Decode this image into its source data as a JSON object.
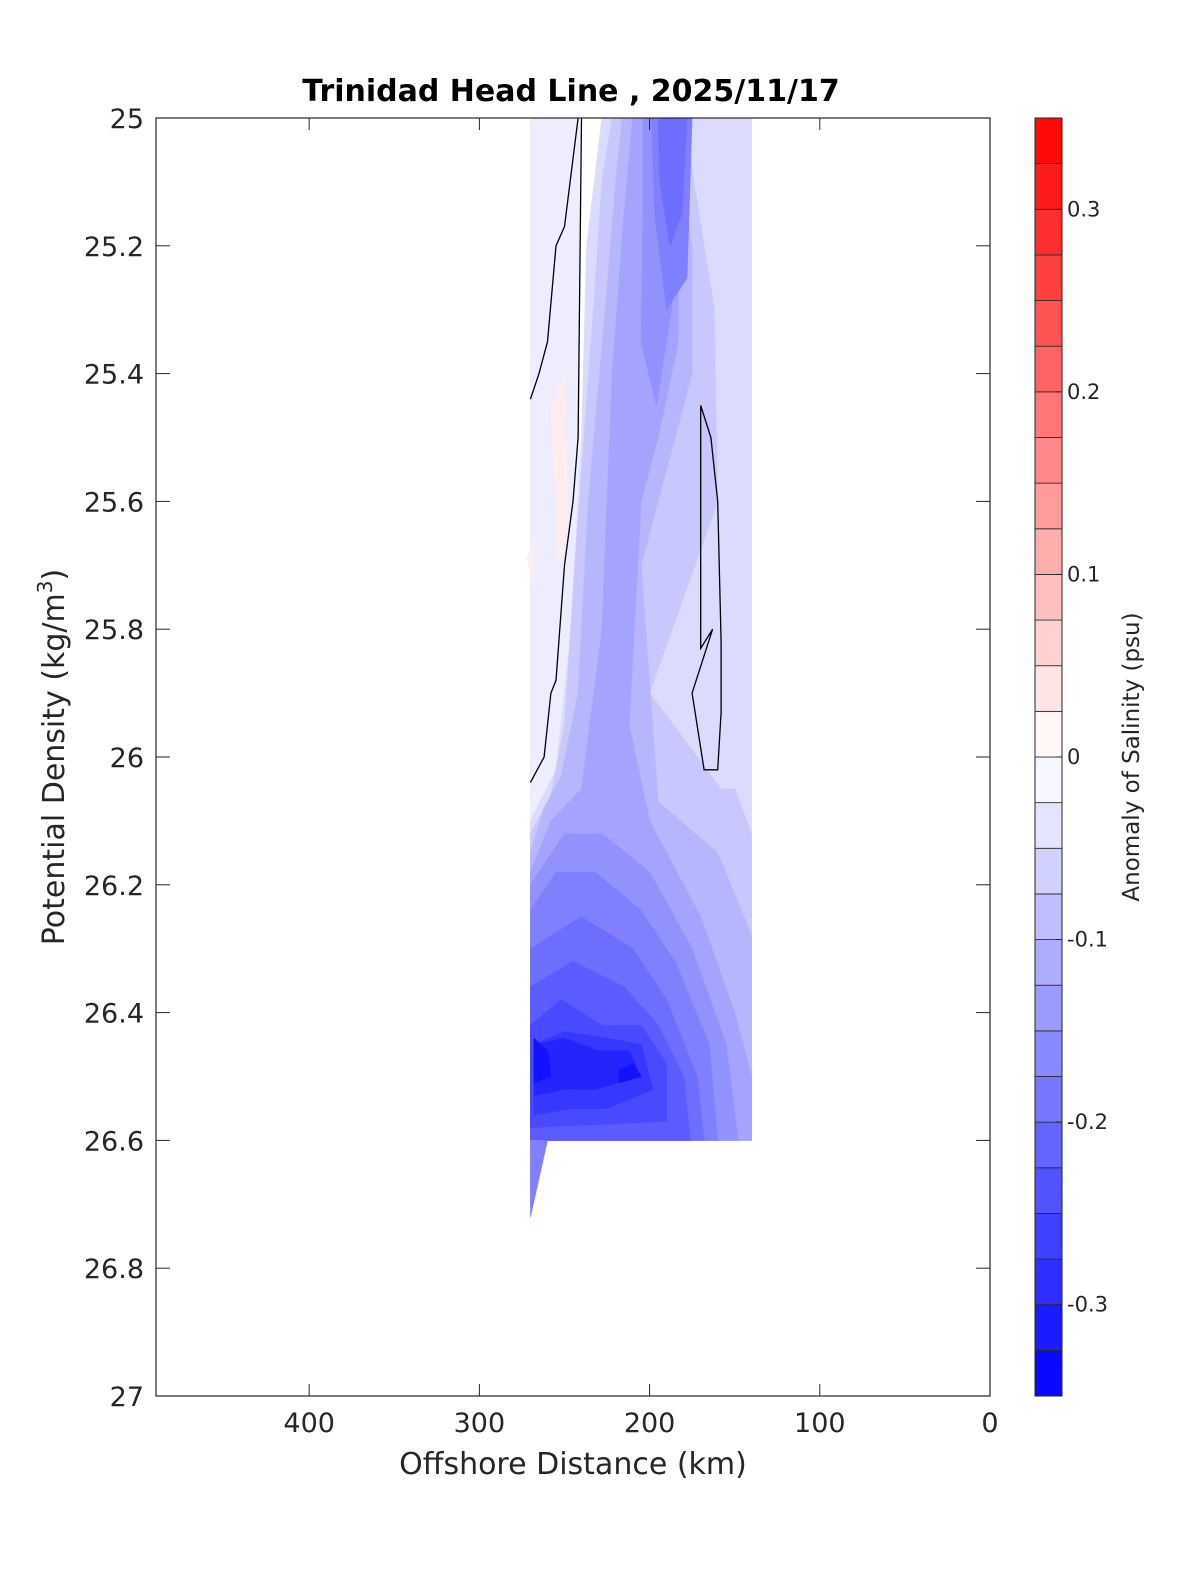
{
  "chart_data": {
    "type": "heatmap",
    "title": "Trinidad Head Line , 2025/11/17",
    "xlabel": "Offshore Distance (km)",
    "ylabel_main": "Potential Density (kg/m",
    "ylabel_sup": "3",
    "ylabel_close": ")",
    "x_reversed": true,
    "y_reversed": true,
    "xlim": [
      0,
      490
    ],
    "ylim": [
      25,
      27
    ],
    "x_ticks": [
      400,
      300,
      200,
      100,
      0
    ],
    "y_ticks": [
      "25",
      "25.2",
      "25.4",
      "25.6",
      "25.8",
      "26",
      "26.2",
      "26.4",
      "26.6",
      "26.8",
      "27"
    ],
    "y_tick_values": [
      25,
      25.2,
      25.4,
      25.6,
      25.8,
      26,
      26.2,
      26.4,
      26.6,
      26.8,
      27
    ],
    "colorbar": {
      "label": "Anomaly of Salinity (psu)",
      "range": [
        -0.35,
        0.35
      ],
      "step": 0.025,
      "ticks": [
        "0.3",
        "0.2",
        "0.1",
        "0",
        "-0.1",
        "-0.2",
        "-0.3"
      ],
      "tick_values": [
        0.3,
        0.2,
        0.1,
        0,
        -0.1,
        -0.2,
        -0.3
      ],
      "neg_color": "#0000ff",
      "pos_color": "#ff0000"
    },
    "contour_levels": [
      0
    ],
    "regions": [
      {
        "anomaly": -0.025,
        "points": [
          [
            270,
            25.0
          ],
          [
            241,
            25.0
          ],
          [
            241,
            26.6
          ],
          [
            270,
            26.6
          ]
        ]
      },
      {
        "anomaly": -0.05,
        "points": [
          [
            228,
            25.0
          ],
          [
            140,
            25.0
          ],
          [
            140,
            26.6
          ],
          [
            270,
            26.6
          ],
          [
            270,
            26.1
          ],
          [
            255,
            26.02
          ],
          [
            246,
            25.8
          ],
          [
            240,
            25.5
          ],
          [
            237,
            25.2
          ]
        ]
      },
      {
        "anomaly": -0.075,
        "points": [
          [
            222,
            25.0
          ],
          [
            180,
            25.0
          ],
          [
            162,
            25.3
          ],
          [
            160,
            25.6
          ],
          [
            180,
            25.75
          ],
          [
            200,
            25.9
          ],
          [
            158,
            26.05
          ],
          [
            150,
            26.05
          ],
          [
            140,
            26.12
          ],
          [
            140,
            26.6
          ],
          [
            270,
            26.6
          ],
          [
            270,
            26.12
          ],
          [
            258,
            26.06
          ],
          [
            250,
            25.95
          ],
          [
            244,
            25.7
          ],
          [
            233,
            25.3
          ],
          [
            228,
            25.1
          ]
        ]
      },
      {
        "anomaly": -0.1,
        "points": [
          [
            216,
            25.0
          ],
          [
            190,
            25.0
          ],
          [
            175,
            25.2
          ],
          [
            175,
            25.4
          ],
          [
            190,
            25.55
          ],
          [
            205,
            25.7
          ],
          [
            195,
            26.07
          ],
          [
            160,
            26.15
          ],
          [
            140,
            26.28
          ],
          [
            140,
            26.6
          ],
          [
            270,
            26.6
          ],
          [
            270,
            26.15
          ],
          [
            262,
            26.08
          ],
          [
            252,
            26.03
          ],
          [
            242,
            25.9
          ],
          [
            236,
            25.6
          ],
          [
            226,
            25.3
          ],
          [
            220,
            25.1
          ]
        ]
      },
      {
        "anomaly": -0.125,
        "points": [
          [
            210,
            25.0
          ],
          [
            195,
            25.0
          ],
          [
            183,
            25.15
          ],
          [
            183,
            25.35
          ],
          [
            195,
            25.5
          ],
          [
            205,
            25.6
          ],
          [
            212,
            25.95
          ],
          [
            200,
            26.1
          ],
          [
            170,
            26.25
          ],
          [
            150,
            26.4
          ],
          [
            140,
            26.5
          ],
          [
            140,
            26.6
          ],
          [
            270,
            26.6
          ],
          [
            270,
            26.18
          ],
          [
            258,
            26.1
          ],
          [
            240,
            26.05
          ],
          [
            228,
            25.8
          ],
          [
            222,
            25.4
          ],
          [
            215,
            25.15
          ]
        ]
      },
      {
        "anomaly": -0.15,
        "points": [
          [
            204,
            25.0
          ],
          [
            188,
            25.0
          ],
          [
            187,
            25.3
          ],
          [
            196,
            25.45
          ],
          [
            205,
            25.35
          ],
          [
            204,
            25.15
          ]
        ]
      },
      {
        "anomaly": -0.15,
        "points": [
          [
            270,
            26.6
          ],
          [
            148,
            26.6
          ],
          [
            155,
            26.45
          ],
          [
            175,
            26.3
          ],
          [
            200,
            26.18
          ],
          [
            228,
            26.12
          ],
          [
            250,
            26.12
          ],
          [
            270,
            26.2
          ]
        ]
      },
      {
        "anomaly": -0.175,
        "points": [
          [
            199,
            25.0
          ],
          [
            175,
            25.0
          ],
          [
            178,
            25.25
          ],
          [
            190,
            25.3
          ],
          [
            197,
            25.15
          ]
        ]
      },
      {
        "anomaly": -0.175,
        "points": [
          [
            270,
            26.6
          ],
          [
            160,
            26.6
          ],
          [
            165,
            26.45
          ],
          [
            185,
            26.32
          ],
          [
            205,
            26.24
          ],
          [
            232,
            26.18
          ],
          [
            255,
            26.18
          ],
          [
            270,
            26.24
          ]
        ]
      },
      {
        "anomaly": -0.2,
        "points": [
          [
            195,
            25.0
          ],
          [
            178,
            25.0
          ],
          [
            181,
            25.15
          ],
          [
            188,
            25.2
          ],
          [
            194,
            25.1
          ]
        ]
      },
      {
        "anomaly": -0.2,
        "points": [
          [
            270,
            26.6
          ],
          [
            168,
            26.6
          ],
          [
            172,
            26.5
          ],
          [
            190,
            26.38
          ],
          [
            210,
            26.3
          ],
          [
            240,
            26.25
          ],
          [
            270,
            26.3
          ]
        ]
      },
      {
        "anomaly": -0.225,
        "points": [
          [
            270,
            26.6
          ],
          [
            176,
            26.6
          ],
          [
            180,
            26.5
          ],
          [
            195,
            26.42
          ],
          [
            215,
            26.36
          ],
          [
            245,
            26.32
          ],
          [
            270,
            26.36
          ]
        ]
      },
      {
        "anomaly": -0.25,
        "points": [
          [
            270,
            26.58
          ],
          [
            190,
            26.57
          ],
          [
            190,
            26.48
          ],
          [
            205,
            26.42
          ],
          [
            228,
            26.42
          ],
          [
            252,
            26.38
          ],
          [
            270,
            26.42
          ]
        ]
      },
      {
        "anomaly": -0.275,
        "points": [
          [
            268,
            26.56
          ],
          [
            245,
            26.55
          ],
          [
            225,
            26.55
          ],
          [
            198,
            26.52
          ],
          [
            205,
            26.45
          ],
          [
            225,
            26.44
          ],
          [
            250,
            26.43
          ],
          [
            268,
            26.45
          ]
        ]
      },
      {
        "anomaly": -0.3,
        "points": [
          [
            268,
            26.53
          ],
          [
            250,
            26.52
          ],
          [
            232,
            26.52
          ],
          [
            205,
            26.5
          ],
          [
            212,
            26.46
          ],
          [
            230,
            26.46
          ],
          [
            250,
            26.44
          ],
          [
            268,
            26.45
          ]
        ]
      },
      {
        "anomaly": -0.325,
        "points": [
          [
            268,
            26.51
          ],
          [
            258,
            26.5
          ],
          [
            260,
            26.46
          ],
          [
            268,
            26.44
          ]
        ]
      },
      {
        "anomaly": -0.325,
        "points": [
          [
            218,
            26.51
          ],
          [
            205,
            26.5
          ],
          [
            210,
            26.48
          ],
          [
            218,
            26.49
          ]
        ]
      },
      {
        "anomaly": -0.175,
        "points": [
          [
            270,
            26.6
          ],
          [
            260,
            26.6
          ],
          [
            270,
            26.72
          ]
        ]
      },
      {
        "anomaly": 0.025,
        "points": [
          [
            258,
            25.45
          ],
          [
            250,
            25.4
          ],
          [
            248,
            25.65
          ],
          [
            254,
            25.7
          ]
        ]
      },
      {
        "anomaly": 0.025,
        "points": [
          [
            272,
            25.69
          ],
          [
            268,
            25.66
          ],
          [
            268,
            25.73
          ]
        ]
      }
    ],
    "contours": [
      [
        [
          270,
          25.44
        ],
        [
          265,
          25.4
        ],
        [
          260,
          25.35
        ],
        [
          255,
          25.2
        ],
        [
          250,
          25.17
        ],
        [
          242,
          25.0
        ]
      ],
      [
        [
          270,
          26.04
        ],
        [
          262,
          26.0
        ],
        [
          258,
          25.9
        ],
        [
          255,
          25.88
        ],
        [
          250,
          25.7
        ],
        [
          245,
          25.6
        ],
        [
          242,
          25.5
        ],
        [
          240,
          25.0
        ]
      ],
      [
        [
          175,
          25.9
        ],
        [
          168,
          26.02
        ],
        [
          160,
          26.02
        ],
        [
          158,
          25.93
        ],
        [
          158,
          25.82
        ],
        [
          160,
          25.6
        ],
        [
          164,
          25.5
        ],
        [
          170,
          25.45
        ],
        [
          170,
          25.83
        ],
        [
          163,
          25.8
        ],
        [
          175,
          25.9
        ]
      ]
    ]
  }
}
